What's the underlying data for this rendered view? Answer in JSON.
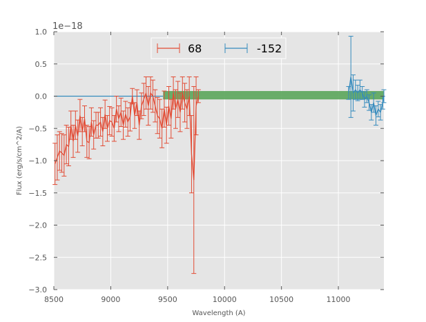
{
  "chart_data": {
    "type": "line",
    "title": "",
    "xlabel": "Wavelength (A)",
    "ylabel": "Flux (erg/s/cm^2/A)",
    "y_offset_label": "1e−18",
    "xlim": [
      8500,
      11400
    ],
    "ylim": [
      -3.0,
      1.0
    ],
    "xticks": [
      8500,
      9000,
      9500,
      10000,
      10500,
      11000
    ],
    "yticks": [
      1.0,
      0.5,
      0.0,
      -0.5,
      -1.0,
      -1.5,
      -2.0,
      -2.5,
      -3.0
    ],
    "xtick_labels": [
      "8500",
      "9000",
      "9500",
      "10000",
      "10500",
      "11000"
    ],
    "ytick_labels": [
      "1.0",
      "0.5",
      "0.0",
      "−0.5",
      "−1.0",
      "−1.5",
      "−2.0",
      "−2.5",
      "−3.0"
    ],
    "grid": true,
    "legend_position": "top-center",
    "band": {
      "x_start": 9460,
      "x_end": 11400,
      "y_low": -0.05,
      "y_high": 0.08,
      "color": "#5aa55a"
    },
    "zero_line": {
      "y": 0.0,
      "x_start": 8500,
      "x_end": 9460,
      "color": "#348abd"
    },
    "series": [
      {
        "name": "68",
        "color": "#e24a33",
        "x": [
          8510,
          8530,
          8550,
          8570,
          8590,
          8610,
          8630,
          8650,
          8670,
          8690,
          8710,
          8730,
          8750,
          8770,
          8790,
          8810,
          8830,
          8850,
          8870,
          8890,
          8910,
          8930,
          8950,
          8970,
          8990,
          9010,
          9030,
          9050,
          9070,
          9090,
          9110,
          9130,
          9150,
          9170,
          9190,
          9210,
          9230,
          9250,
          9270,
          9290,
          9310,
          9330,
          9350,
          9370,
          9390,
          9410,
          9430,
          9450,
          9470,
          9490,
          9510,
          9530,
          9550,
          9570,
          9590,
          9610,
          9630,
          9650,
          9670,
          9690,
          9710,
          9730,
          9750,
          9770
        ],
        "y": [
          -1.05,
          -0.95,
          -0.85,
          -0.88,
          -0.92,
          -0.75,
          -0.78,
          -0.45,
          -0.7,
          -0.45,
          -0.62,
          -0.3,
          -0.55,
          -0.35,
          -0.7,
          -0.72,
          -0.4,
          -0.6,
          -0.45,
          -0.45,
          -0.4,
          -0.55,
          -0.28,
          -0.5,
          -0.38,
          -0.4,
          -0.5,
          -0.2,
          -0.35,
          -0.25,
          -0.45,
          -0.28,
          -0.4,
          -0.32,
          0.0,
          -0.3,
          -0.1,
          -0.45,
          -0.15,
          -0.05,
          0.05,
          -0.15,
          0.05,
          0.0,
          -0.15,
          -0.3,
          -0.35,
          -0.5,
          -0.2,
          -0.45,
          -0.15,
          -0.35,
          0.05,
          -0.2,
          -0.05,
          -0.25,
          0.05,
          -0.1,
          -0.2,
          0.0,
          -0.9,
          -1.3,
          -0.15,
          0.0
        ],
        "err": [
          0.32,
          0.35,
          0.3,
          0.3,
          0.32,
          0.3,
          0.3,
          0.22,
          0.25,
          0.22,
          0.25,
          0.25,
          0.22,
          0.2,
          0.25,
          0.25,
          0.22,
          0.22,
          0.2,
          0.2,
          0.22,
          0.22,
          0.22,
          0.2,
          0.22,
          0.22,
          0.2,
          0.2,
          0.2,
          0.22,
          0.22,
          0.2,
          0.22,
          0.22,
          0.12,
          0.2,
          0.2,
          0.22,
          0.2,
          0.25,
          0.25,
          0.3,
          0.25,
          0.25,
          0.25,
          0.28,
          0.3,
          0.3,
          0.28,
          0.28,
          0.3,
          0.3,
          0.25,
          0.3,
          0.28,
          0.3,
          0.25,
          0.3,
          0.3,
          0.3,
          0.6,
          1.45,
          0.45,
          0.1
        ]
      },
      {
        "name": "-152",
        "color": "#348abd",
        "x": [
          11090,
          11110,
          11130,
          11150,
          11170,
          11190,
          11210,
          11230,
          11250,
          11270,
          11290,
          11310,
          11330,
          11350,
          11370,
          11390,
          11400
        ],
        "y": [
          0.05,
          0.3,
          0.05,
          0.1,
          0.05,
          0.1,
          0.05,
          -0.05,
          0.0,
          -0.1,
          -0.25,
          -0.1,
          -0.3,
          -0.2,
          -0.25,
          -0.1,
          0.0
        ],
        "err": [
          0.1,
          0.63,
          0.28,
          0.15,
          0.12,
          0.15,
          0.1,
          0.12,
          0.1,
          0.12,
          0.12,
          0.15,
          0.15,
          0.12,
          0.12,
          0.1,
          0.1
        ]
      }
    ]
  }
}
